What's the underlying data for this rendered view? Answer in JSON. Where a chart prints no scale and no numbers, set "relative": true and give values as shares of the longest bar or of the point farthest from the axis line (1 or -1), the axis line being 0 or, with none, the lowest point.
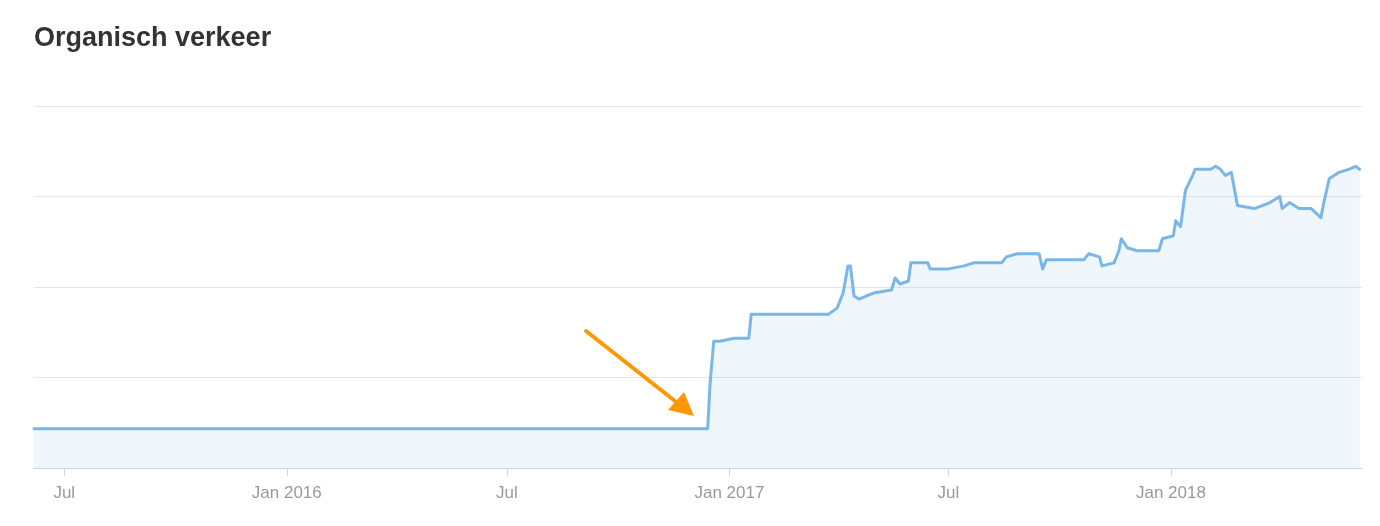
{
  "chart_data": {
    "type": "area",
    "title": "Organisch verkeer",
    "relative": true,
    "grid": "y",
    "marker": "none",
    "line_style": "solid",
    "xlim": [
      "2015-06-06",
      "2018-06-08"
    ],
    "xticks": [
      {
        "value": "2015-07-01",
        "label": "Jul"
      },
      {
        "value": "2016-01-01",
        "label": "Jan 2016"
      },
      {
        "value": "2016-07-01",
        "label": "Jul"
      },
      {
        "value": "2017-01-01",
        "label": "Jan 2017"
      },
      {
        "value": "2017-07-01",
        "label": "Jul"
      },
      {
        "value": "2018-01-01",
        "label": "Jan 2018"
      }
    ],
    "series": [
      {
        "color": "#7ab6e8",
        "x": [
          "2015-06-06",
          "2016-12-14",
          "2016-12-16",
          "2016-12-19",
          "2016-12-24",
          "2017-01-05",
          "2017-01-17",
          "2017-01-19",
          "2017-03-24",
          "2017-03-31",
          "2017-04-05",
          "2017-04-09",
          "2017-04-11",
          "2017-04-14",
          "2017-04-18",
          "2017-04-30",
          "2017-05-15",
          "2017-05-18",
          "2017-05-22",
          "2017-05-29",
          "2017-05-31",
          "2017-06-14",
          "2017-06-16",
          "2017-07-01",
          "2017-07-14",
          "2017-07-22",
          "2017-08-14",
          "2017-08-18",
          "2017-08-27",
          "2017-09-14",
          "2017-09-17",
          "2017-09-20",
          "2017-10-21",
          "2017-10-25",
          "2017-11-03",
          "2017-11-05",
          "2017-11-15",
          "2017-11-19",
          "2017-11-21",
          "2017-11-26",
          "2017-12-04",
          "2017-12-22",
          "2017-12-25",
          "2018-01-03",
          "2018-01-05",
          "2018-01-09",
          "2018-01-13",
          "2018-01-19",
          "2018-01-21",
          "2018-02-03",
          "2018-02-07",
          "2018-02-11",
          "2018-02-15",
          "2018-02-20",
          "2018-02-25",
          "2018-03-11",
          "2018-03-24",
          "2018-04-01",
          "2018-04-03",
          "2018-04-09",
          "2018-04-17",
          "2018-04-27",
          "2018-05-05",
          "2018-05-08",
          "2018-05-12",
          "2018-05-20",
          "2018-05-28",
          "2018-06-03",
          "2018-06-06"
        ],
        "values": [
          0.13,
          0.13,
          0.28,
          0.42,
          0.42,
          0.43,
          0.43,
          0.51,
          0.51,
          0.53,
          0.58,
          0.67,
          0.67,
          0.57,
          0.56,
          0.58,
          0.59,
          0.63,
          0.61,
          0.62,
          0.68,
          0.68,
          0.66,
          0.66,
          0.67,
          0.68,
          0.68,
          0.7,
          0.71,
          0.71,
          0.66,
          0.69,
          0.69,
          0.71,
          0.7,
          0.67,
          0.68,
          0.72,
          0.76,
          0.73,
          0.72,
          0.72,
          0.76,
          0.77,
          0.82,
          0.8,
          0.92,
          0.97,
          0.99,
          0.99,
          1,
          0.99,
          0.97,
          0.98,
          0.87,
          0.86,
          0.88,
          0.9,
          0.86,
          0.88,
          0.86,
          0.86,
          0.83,
          0.89,
          0.96,
          0.98,
          0.99,
          1,
          0.99
        ]
      }
    ]
  }
}
